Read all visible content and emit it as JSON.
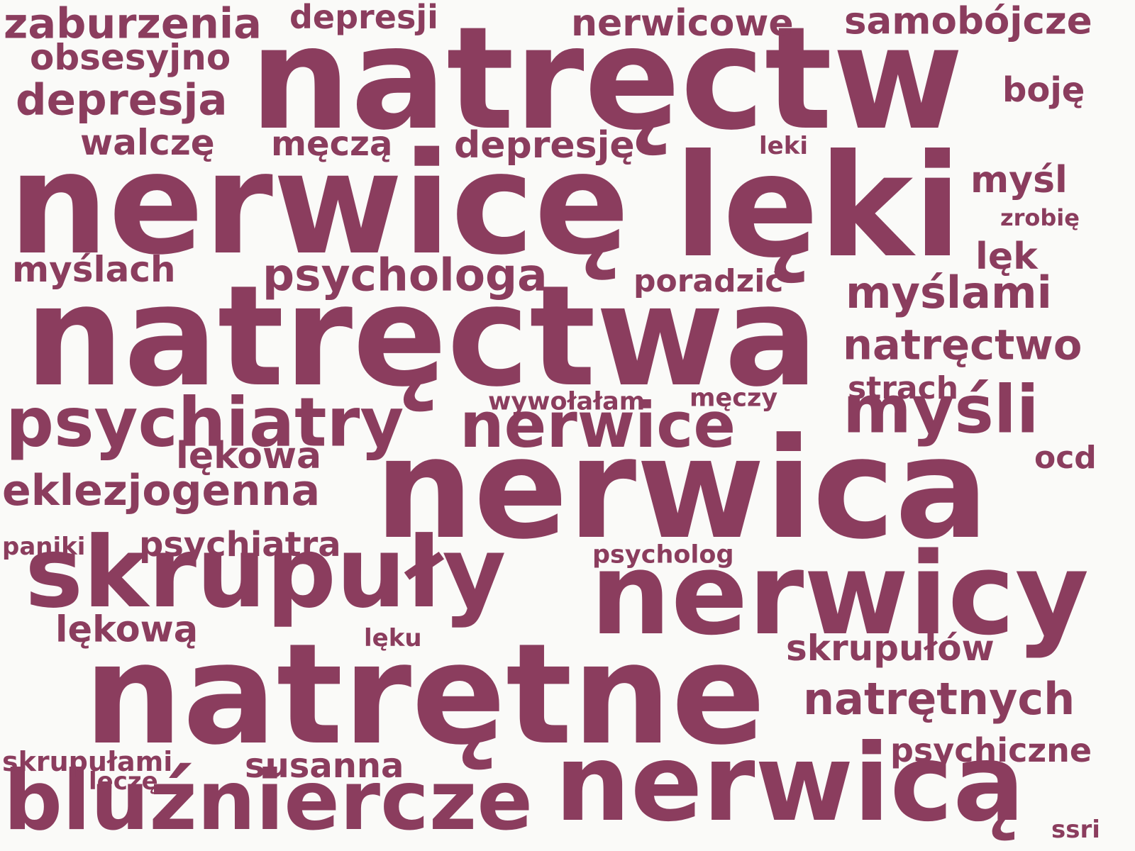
{
  "cloud": {
    "color": "#8b3d5e",
    "background": "#fafaf8",
    "words": [
      "natręctw",
      "nerwicę",
      "lęki",
      "natręctwa",
      "nerwica",
      "nerwicy",
      "natrętne",
      "skrupuły",
      "nerwicą",
      "bluźniercze",
      "psychiatry",
      "nerwice",
      "myśli",
      "psychologa",
      "myślami",
      "natręctwo",
      "natrętnych",
      "depresja",
      "zaburzenia",
      "nerwicowe",
      "samobójcze",
      "eklezjogenna",
      "depresję",
      "obsesyjno",
      "depresji",
      "walczę",
      "męczą",
      "myśl",
      "boję",
      "myślach",
      "lękowa",
      "psychiatra",
      "skrupułów",
      "lękową",
      "psychiczne",
      "susanna",
      "lęk",
      "strach",
      "poradzić",
      "ocd",
      "skrupułami",
      "wywołałam",
      "męczy",
      "psycholog",
      "zrobię",
      "leki",
      "paniki",
      "lęku",
      "leczę",
      "ssri"
    ]
  }
}
